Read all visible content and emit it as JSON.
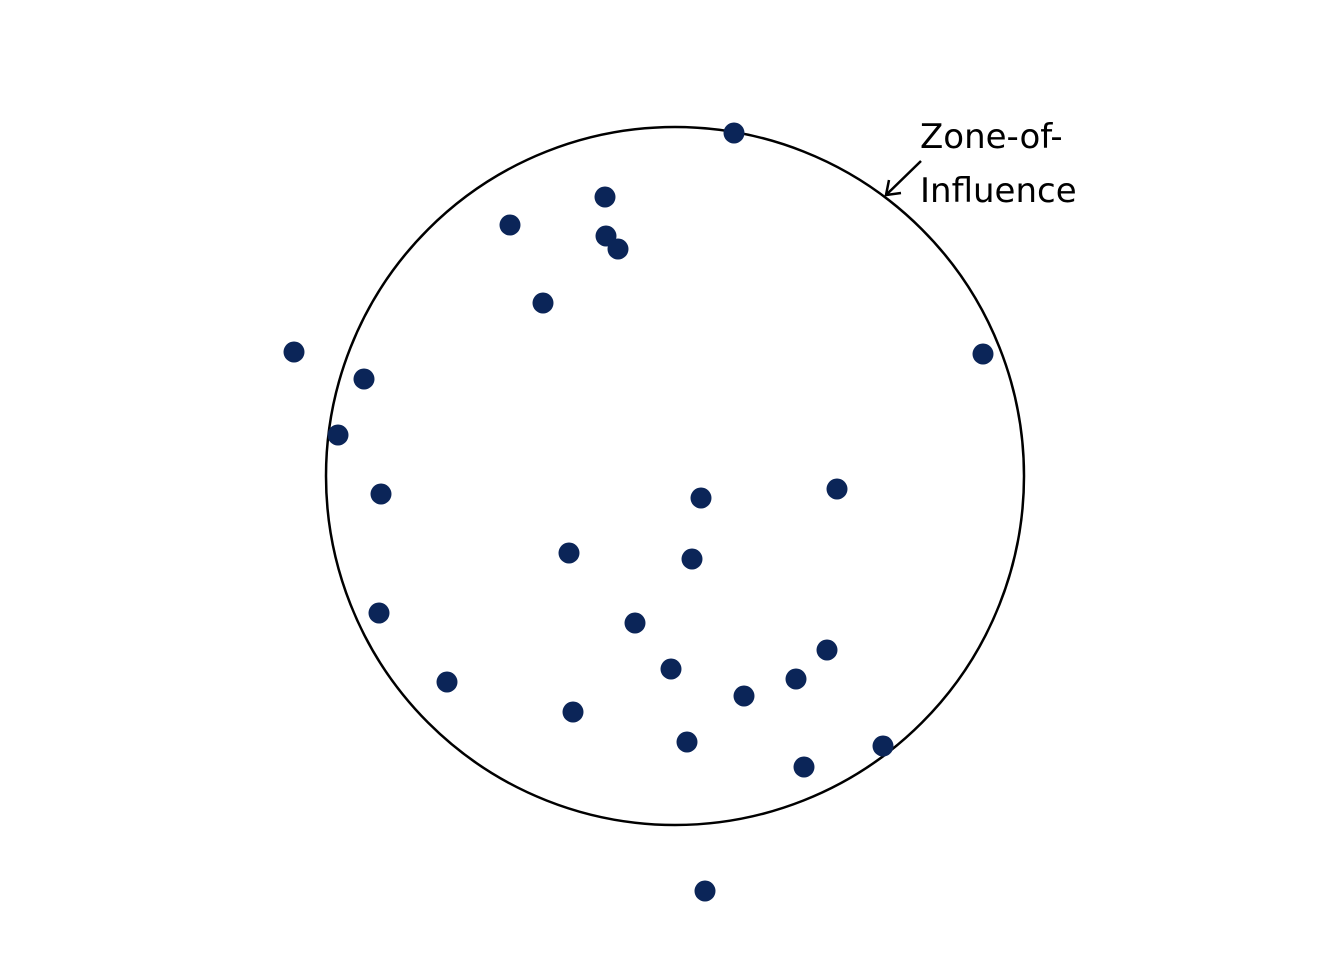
{
  "colors": {
    "background": "#ffffff",
    "point": "#0b2558",
    "outline": "#000000"
  },
  "annotation": {
    "line1": "Zone-of-",
    "line2": "Influence"
  },
  "points": [
    {
      "id": 1
    },
    {
      "id": 2
    },
    {
      "id": 3
    },
    {
      "id": 4
    },
    {
      "id": 5
    },
    {
      "id": 6
    },
    {
      "id": 7
    },
    {
      "id": 8
    },
    {
      "id": 9
    },
    {
      "id": 10
    },
    {
      "id": 11
    },
    {
      "id": 12
    },
    {
      "id": 13
    },
    {
      "id": 14
    },
    {
      "id": 15
    },
    {
      "id": 16
    },
    {
      "id": 17
    },
    {
      "id": 18
    },
    {
      "id": 19
    },
    {
      "id": 20
    },
    {
      "id": 21
    },
    {
      "id": 22
    },
    {
      "id": 23
    },
    {
      "id": 24
    },
    {
      "id": 25
    },
    {
      "id": 26
    },
    {
      "id": 27
    }
  ]
}
